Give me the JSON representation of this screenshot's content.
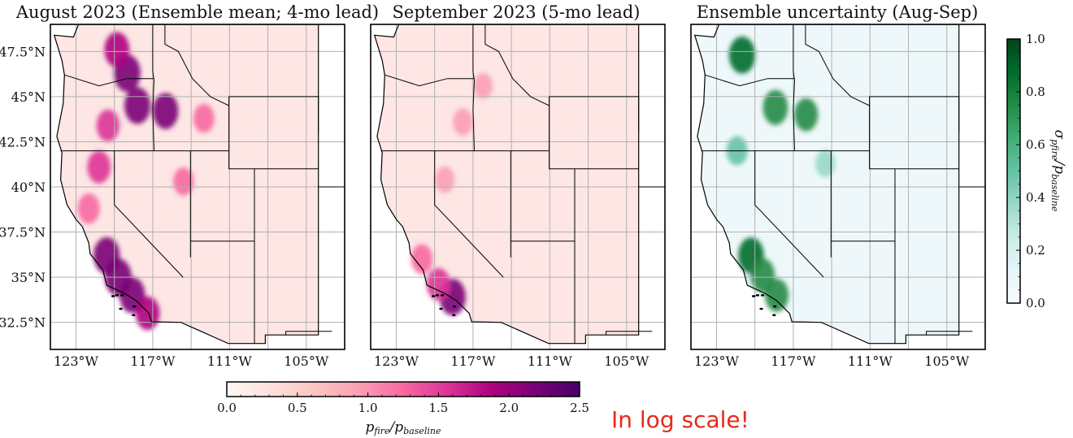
{
  "chart_data": [
    {
      "type": "heatmap",
      "title": "August 2023 (Ensemble mean; 4-mo lead)",
      "colormap": "RdPu",
      "region": "Western United States",
      "xlim": [
        -125,
        -102
      ],
      "ylim": [
        31,
        49
      ],
      "xticks": [
        -123,
        -117,
        -111,
        -105
      ],
      "xtick_labels": [
        "123°W",
        "117°W",
        "111°W",
        "105°W"
      ],
      "yticks": [
        32.5,
        35,
        37.5,
        40,
        42.5,
        45,
        47.5
      ],
      "ytick_labels": [
        "32.5°N",
        "35°N",
        "37.5°N",
        "40°N",
        "42.5°N",
        "45°N",
        "47.5°N"
      ],
      "hotspots": [
        {
          "lon": -119.0,
          "lat": 46.3,
          "value": 2.3
        },
        {
          "lon": -118.2,
          "lat": 44.5,
          "value": 2.2
        },
        {
          "lon": -119.8,
          "lat": 47.6,
          "value": 2.0
        },
        {
          "lon": -116.0,
          "lat": 44.2,
          "value": 2.1
        },
        {
          "lon": -120.5,
          "lat": 43.4,
          "value": 1.6
        },
        {
          "lon": -121.2,
          "lat": 41.1,
          "value": 1.7
        },
        {
          "lon": -120.6,
          "lat": 36.2,
          "value": 2.2
        },
        {
          "lon": -119.7,
          "lat": 35.0,
          "value": 2.3
        },
        {
          "lon": -118.6,
          "lat": 34.0,
          "value": 2.1
        },
        {
          "lon": -117.4,
          "lat": 33.0,
          "value": 1.8
        },
        {
          "lon": -122.0,
          "lat": 38.8,
          "value": 1.4
        },
        {
          "lon": -113.0,
          "lat": 43.8,
          "value": 1.2
        },
        {
          "lon": -114.6,
          "lat": 40.3,
          "value": 1.1
        }
      ]
    },
    {
      "type": "heatmap",
      "title": "September 2023 (5-mo lead)",
      "colormap": "RdPu",
      "region": "Western United States",
      "xlim": [
        -125,
        -102
      ],
      "ylim": [
        31,
        49
      ],
      "xticks": [
        -123,
        -117,
        -111,
        -105
      ],
      "xtick_labels": [
        "123°W",
        "117°W",
        "111°W",
        "105°W"
      ],
      "yticks": [
        32.5,
        35,
        37.5,
        40,
        42.5,
        45,
        47.5
      ],
      "hotspots": [
        {
          "lon": -118.6,
          "lat": 33.9,
          "value": 2.2
        },
        {
          "lon": -119.7,
          "lat": 34.6,
          "value": 1.7
        },
        {
          "lon": -121.0,
          "lat": 36.0,
          "value": 1.3
        },
        {
          "lon": -117.8,
          "lat": 43.6,
          "value": 1.0
        },
        {
          "lon": -119.2,
          "lat": 40.4,
          "value": 0.9
        },
        {
          "lon": -116.2,
          "lat": 45.6,
          "value": 0.8
        }
      ]
    },
    {
      "type": "heatmap",
      "title": "Ensemble uncertainty (Aug-Sep)",
      "colormap": "BuGn",
      "region": "Western United States",
      "xlim": [
        -125,
        -102
      ],
      "ylim": [
        31,
        49
      ],
      "xticks": [
        -123,
        -117,
        -111,
        -105
      ],
      "xtick_labels": [
        "123°W",
        "117°W",
        "111°W",
        "105°W"
      ],
      "yticks": [
        32.5,
        35,
        37.5,
        40,
        42.5,
        45,
        47.5
      ],
      "hotspots": [
        {
          "lon": -121.0,
          "lat": 47.3,
          "value": 0.9
        },
        {
          "lon": -118.4,
          "lat": 44.4,
          "value": 0.8
        },
        {
          "lon": -116.0,
          "lat": 44.0,
          "value": 0.7
        },
        {
          "lon": -120.3,
          "lat": 36.2,
          "value": 0.85
        },
        {
          "lon": -119.4,
          "lat": 35.1,
          "value": 0.75
        },
        {
          "lon": -118.3,
          "lat": 34.0,
          "value": 0.7
        },
        {
          "lon": -121.4,
          "lat": 42.0,
          "value": 0.5
        },
        {
          "lon": -114.5,
          "lat": 41.3,
          "value": 0.4
        }
      ]
    }
  ],
  "colorbars": {
    "bottom": {
      "label": "p_fire/p_baseline",
      "label_main": "p",
      "label_sub1": "fire",
      "label_sub2": "baseline",
      "range": [
        0.0,
        2.5
      ],
      "ticks": [
        0.0,
        0.5,
        1.0,
        1.5,
        2.0,
        2.5
      ],
      "tick_labels": [
        "0.0",
        "0.5",
        "1.0",
        "1.5",
        "2.0",
        "2.5"
      ],
      "colors": [
        "#fff7f3",
        "#fde0dd",
        "#fcc5c0",
        "#fa9fb5",
        "#f768a1",
        "#dd3497",
        "#ae017e",
        "#7a0177",
        "#49006a"
      ]
    },
    "right": {
      "label": "σ_pfire/p_baseline",
      "label_sigma": "σ",
      "label_sub": "pfire",
      "label_tail": "/p",
      "label_tail_sub": "baseline",
      "range": [
        0.0,
        1.0
      ],
      "ticks": [
        0.0,
        0.2,
        0.4,
        0.6,
        0.8,
        1.0
      ],
      "tick_labels": [
        "0.0",
        "0.2",
        "0.4",
        "0.6",
        "0.8",
        "1.0"
      ],
      "colors": [
        "#f7fcfd",
        "#e5f5f9",
        "#ccece6",
        "#99d8c9",
        "#66c2a4",
        "#41ae76",
        "#238b45",
        "#006d2c",
        "#00441b"
      ]
    }
  },
  "annotation": "In log scale!",
  "colors": {
    "annotation": "#e8291c",
    "base_pink": "#fde6e4",
    "base_teal": "#eef8fa",
    "grid": "#b0b0b0",
    "border": "#000000"
  }
}
